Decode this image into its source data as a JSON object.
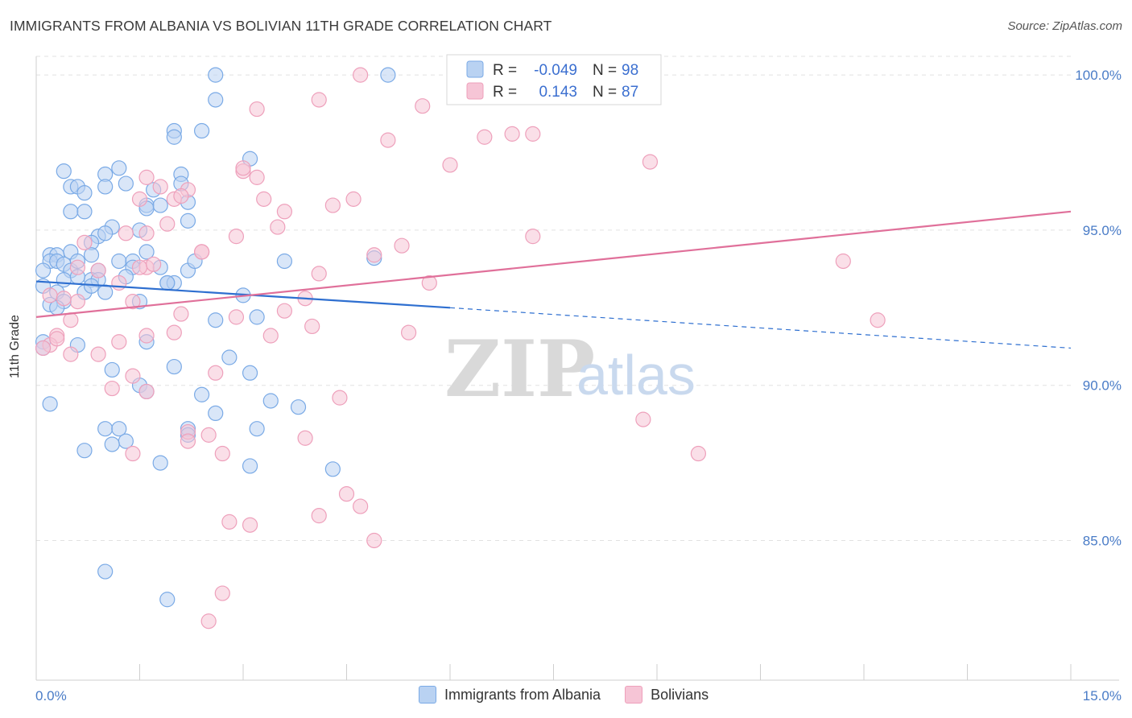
{
  "title": "IMMIGRANTS FROM ALBANIA VS BOLIVIAN 11TH GRADE CORRELATION CHART",
  "source": "Source: ZipAtlas.com",
  "watermark": {
    "zip": "ZIP",
    "atlas": "atlas"
  },
  "chart_data": {
    "type": "scatter",
    "title": "IMMIGRANTS FROM ALBANIA VS BOLIVIAN 11TH GRADE CORRELATION CHART",
    "xlabel": "",
    "ylabel": "11th Grade",
    "xlim": [
      0,
      15
    ],
    "ylim": [
      80.5,
      100.6
    ],
    "x_tick_labels": [
      "0.0%",
      "15.0%"
    ],
    "y_ticks": [
      85,
      90,
      95,
      100
    ],
    "y_tick_labels": [
      "85.0%",
      "90.0%",
      "95.0%",
      "100.0%"
    ],
    "grid": true,
    "legend_position": "top-center",
    "stats": [
      {
        "r_label": "R =",
        "r": "-0.049",
        "n_label": "N =",
        "n": "98"
      },
      {
        "r_label": "R =",
        "r": "0.143",
        "n_label": "N =",
        "n": "87"
      }
    ],
    "series": [
      {
        "name": "Immigrants from Albania",
        "color": "#7aaae6",
        "fill": "#b9d2f2",
        "line_color": "#2e6fd0",
        "trend": {
          "x0": 0.0,
          "y0": 93.35,
          "x1": 6.0,
          "y1": 92.5,
          "x_dash_end": 15.0,
          "y_dash_end": 91.2
        },
        "points": [
          [
            2.6,
            100.0
          ],
          [
            5.1,
            100.0
          ],
          [
            2.6,
            99.2
          ],
          [
            2.0,
            98.2
          ],
          [
            2.4,
            98.2
          ],
          [
            2.0,
            98.0
          ],
          [
            3.1,
            97.3
          ],
          [
            1.2,
            97.0
          ],
          [
            0.4,
            96.9
          ],
          [
            1.0,
            96.8
          ],
          [
            2.1,
            96.8
          ],
          [
            0.5,
            96.4
          ],
          [
            0.6,
            96.4
          ],
          [
            1.0,
            96.4
          ],
          [
            1.3,
            96.5
          ],
          [
            2.1,
            96.5
          ],
          [
            0.7,
            96.2
          ],
          [
            1.7,
            96.3
          ],
          [
            2.2,
            95.9
          ],
          [
            1.6,
            95.8
          ],
          [
            0.5,
            95.6
          ],
          [
            0.7,
            95.6
          ],
          [
            1.6,
            95.7
          ],
          [
            2.2,
            95.3
          ],
          [
            1.1,
            95.1
          ],
          [
            1.5,
            95.0
          ],
          [
            0.9,
            94.8
          ],
          [
            1.0,
            94.9
          ],
          [
            0.8,
            94.6
          ],
          [
            0.5,
            94.3
          ],
          [
            0.2,
            94.2
          ],
          [
            0.3,
            94.2
          ],
          [
            0.8,
            94.2
          ],
          [
            1.6,
            94.3
          ],
          [
            3.6,
            94.0
          ],
          [
            4.9,
            94.1
          ],
          [
            0.2,
            94.0
          ],
          [
            0.3,
            94.0
          ],
          [
            0.4,
            93.9
          ],
          [
            1.2,
            94.0
          ],
          [
            1.4,
            94.0
          ],
          [
            1.4,
            93.8
          ],
          [
            1.8,
            93.8
          ],
          [
            2.2,
            93.7
          ],
          [
            0.1,
            93.7
          ],
          [
            0.5,
            93.7
          ],
          [
            0.9,
            93.7
          ],
          [
            1.3,
            93.5
          ],
          [
            0.4,
            93.4
          ],
          [
            0.8,
            93.4
          ],
          [
            0.9,
            93.4
          ],
          [
            1.9,
            93.3
          ],
          [
            2.0,
            93.3
          ],
          [
            0.1,
            93.2
          ],
          [
            0.3,
            93.0
          ],
          [
            0.7,
            93.0
          ],
          [
            3.0,
            92.9
          ],
          [
            1.5,
            92.7
          ],
          [
            0.4,
            92.7
          ],
          [
            0.2,
            92.6
          ],
          [
            2.6,
            92.1
          ],
          [
            3.2,
            92.2
          ],
          [
            1.6,
            91.4
          ],
          [
            0.6,
            91.3
          ],
          [
            0.1,
            91.4
          ],
          [
            2.8,
            90.9
          ],
          [
            2.0,
            90.6
          ],
          [
            1.1,
            90.5
          ],
          [
            3.1,
            90.4
          ],
          [
            1.5,
            90.0
          ],
          [
            1.6,
            89.8
          ],
          [
            2.4,
            89.7
          ],
          [
            3.4,
            89.5
          ],
          [
            0.2,
            89.4
          ],
          [
            3.8,
            89.3
          ],
          [
            2.6,
            89.1
          ],
          [
            1.0,
            88.6
          ],
          [
            1.2,
            88.6
          ],
          [
            2.2,
            88.6
          ],
          [
            3.2,
            88.6
          ],
          [
            1.3,
            88.2
          ],
          [
            1.1,
            88.1
          ],
          [
            2.2,
            88.4
          ],
          [
            0.7,
            87.9
          ],
          [
            1.8,
            87.5
          ],
          [
            3.1,
            87.4
          ],
          [
            4.3,
            87.3
          ],
          [
            1.0,
            84.0
          ],
          [
            1.9,
            83.1
          ],
          [
            0.1,
            91.2
          ],
          [
            0.3,
            92.5
          ],
          [
            1.9,
            93.3
          ],
          [
            1.8,
            95.8
          ],
          [
            2.3,
            94.0
          ],
          [
            0.6,
            93.5
          ],
          [
            1.0,
            93.0
          ],
          [
            0.6,
            94.0
          ],
          [
            0.8,
            93.2
          ]
        ]
      },
      {
        "name": "Bolivians",
        "color": "#eea0bb",
        "fill": "#f6c5d6",
        "line_color": "#e0709a",
        "trend": {
          "x0": 0.0,
          "y0": 92.2,
          "x1": 15.0,
          "y1": 95.6
        },
        "points": [
          [
            4.7,
            100.0
          ],
          [
            8.2,
            100.0
          ],
          [
            4.1,
            99.2
          ],
          [
            3.2,
            98.9
          ],
          [
            5.6,
            99.0
          ],
          [
            7.2,
            98.1
          ],
          [
            6.5,
            98.0
          ],
          [
            5.1,
            97.9
          ],
          [
            6.0,
            97.1
          ],
          [
            8.9,
            97.2
          ],
          [
            3.0,
            96.9
          ],
          [
            1.6,
            96.7
          ],
          [
            3.2,
            96.7
          ],
          [
            1.8,
            96.4
          ],
          [
            2.2,
            96.3
          ],
          [
            1.5,
            96.0
          ],
          [
            2.0,
            96.0
          ],
          [
            3.3,
            96.0
          ],
          [
            4.6,
            96.0
          ],
          [
            4.3,
            95.8
          ],
          [
            3.6,
            95.6
          ],
          [
            1.9,
            95.2
          ],
          [
            3.5,
            95.1
          ],
          [
            1.3,
            94.9
          ],
          [
            1.6,
            94.9
          ],
          [
            2.9,
            94.8
          ],
          [
            5.3,
            94.5
          ],
          [
            7.2,
            94.8
          ],
          [
            0.7,
            94.6
          ],
          [
            2.4,
            94.3
          ],
          [
            4.9,
            94.2
          ],
          [
            11.7,
            94.0
          ],
          [
            1.6,
            93.8
          ],
          [
            0.6,
            93.8
          ],
          [
            1.5,
            93.8
          ],
          [
            0.9,
            93.7
          ],
          [
            4.1,
            93.6
          ],
          [
            5.7,
            93.3
          ],
          [
            1.2,
            93.3
          ],
          [
            0.2,
            92.9
          ],
          [
            0.6,
            92.7
          ],
          [
            3.9,
            92.8
          ],
          [
            1.4,
            92.7
          ],
          [
            3.6,
            92.4
          ],
          [
            2.1,
            92.3
          ],
          [
            2.9,
            92.2
          ],
          [
            0.5,
            92.1
          ],
          [
            12.2,
            92.1
          ],
          [
            4.0,
            91.9
          ],
          [
            5.4,
            91.7
          ],
          [
            2.0,
            91.7
          ],
          [
            3.4,
            91.6
          ],
          [
            0.3,
            91.6
          ],
          [
            1.6,
            91.6
          ],
          [
            1.2,
            91.4
          ],
          [
            0.2,
            91.3
          ],
          [
            0.1,
            91.2
          ],
          [
            0.5,
            91.0
          ],
          [
            0.9,
            91.0
          ],
          [
            2.6,
            90.4
          ],
          [
            1.4,
            90.3
          ],
          [
            1.1,
            89.9
          ],
          [
            1.6,
            89.8
          ],
          [
            4.4,
            89.6
          ],
          [
            8.8,
            88.9
          ],
          [
            2.2,
            88.5
          ],
          [
            2.5,
            88.4
          ],
          [
            3.9,
            88.3
          ],
          [
            2.2,
            88.2
          ],
          [
            1.4,
            87.8
          ],
          [
            9.6,
            87.8
          ],
          [
            2.7,
            87.8
          ],
          [
            4.5,
            86.5
          ],
          [
            4.7,
            86.1
          ],
          [
            4.1,
            85.8
          ],
          [
            2.8,
            85.6
          ],
          [
            3.1,
            85.5
          ],
          [
            4.9,
            85.0
          ],
          [
            2.7,
            83.3
          ],
          [
            2.5,
            82.4
          ],
          [
            3.0,
            97.0
          ],
          [
            2.4,
            94.3
          ],
          [
            1.7,
            93.9
          ],
          [
            0.4,
            92.8
          ],
          [
            2.1,
            96.1
          ],
          [
            6.9,
            98.1
          ],
          [
            0.3,
            91.5
          ]
        ]
      }
    ]
  }
}
